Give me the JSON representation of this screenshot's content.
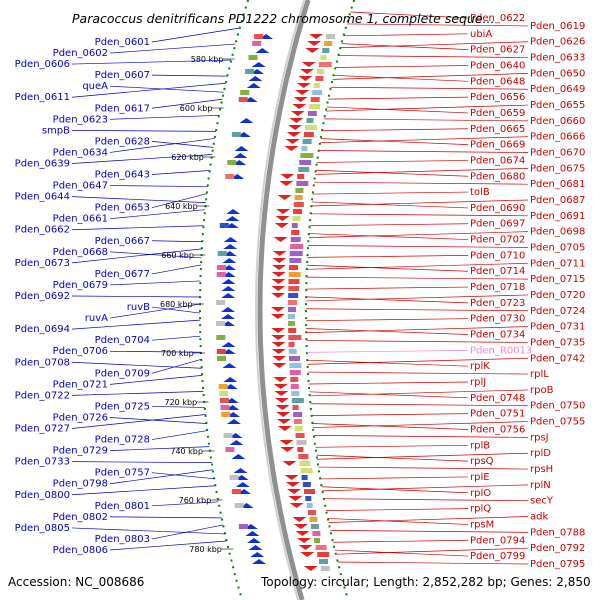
{
  "title": "Paracoccus denitrificans PD1222 chromosome 1, complete seque...",
  "footer": {
    "accession": "Accession: NC_008686",
    "topology": "Topology: circular; Length: 2,852,282 bp; Genes: 2,850"
  },
  "colors": {
    "left_strand": "#0000cc",
    "right_strand": "#cc0000",
    "rna": "#f08cc0",
    "backbone": "#888888",
    "ticks": "#008800"
  },
  "kbp_ticks": [
    "580 kbp",
    "600 kbp",
    "620 kbp",
    "640 kbp",
    "660 kbp",
    "680 kbp",
    "700 kbp",
    "720 kbp",
    "740 kbp",
    "760 kbp",
    "780 kbp"
  ],
  "left_genes": [
    "Pden_0601",
    "Pden_0602",
    "Pden_0606",
    "Pden_0607",
    "queA",
    "Pden_0611",
    "Pden_0617",
    "Pden_0623",
    "smpB",
    "Pden_0628",
    "Pden_0634",
    "Pden_0639",
    "Pden_0643",
    "Pden_0647",
    "Pden_0644",
    "Pden_0653",
    "Pden_0661",
    "Pden_0662",
    "Pden_0667",
    "Pden_0668",
    "Pden_0673",
    "Pden_0677",
    "Pden_0679",
    "Pden_0692",
    "ruvB",
    "ruvA",
    "Pden_0694",
    "Pden_0704",
    "Pden_0706",
    "Pden_0708",
    "Pden_0709",
    "Pden_0721",
    "Pden_0722",
    "Pden_0725",
    "Pden_0726",
    "Pden_0727",
    "Pden_0728",
    "Pden_0729",
    "Pden_0733",
    "Pden_0757",
    "Pden_0798",
    "Pden_0800",
    "Pden_0801",
    "Pden_0802",
    "Pden_0805",
    "Pden_0803",
    "Pden_0806"
  ],
  "right_genes": [
    "Pden_0622",
    "Pden_0619",
    "ubiA",
    "Pden_0626",
    "Pden_0627",
    "Pden_0633",
    "Pden_0640",
    "Pden_0650",
    "Pden_0648",
    "Pden_0649",
    "Pden_0656",
    "Pden_0655",
    "Pden_0659",
    "Pden_0660",
    "Pden_0665",
    "Pden_0666",
    "Pden_0669",
    "Pden_0670",
    "Pden_0674",
    "Pden_0675",
    "Pden_0680",
    "Pden_0681",
    "tolB",
    "Pden_0687",
    "Pden_0690",
    "Pden_0691",
    "Pden_0697",
    "Pden_0698",
    "Pden_0702",
    "Pden_0705",
    "Pden_0710",
    "Pden_0711",
    "Pden_0714",
    "Pden_0715",
    "Pden_0718",
    "Pden_0720",
    "Pden_0723",
    "Pden_0724",
    "Pden_0730",
    "Pden_0731",
    "Pden_0734",
    "Pden_0735",
    "Pden_R0013",
    "Pden_0742",
    "rplK",
    "rplL",
    "rplJ",
    "rpoB",
    "Pden_0748",
    "Pden_0750",
    "Pden_0751",
    "Pden_0755",
    "Pden_0756",
    "rpsJ",
    "rplB",
    "rplD",
    "rpsQ",
    "rpsH",
    "rplE",
    "rplN",
    "rplO",
    "secY",
    "rplQ",
    "adk",
    "rpsM",
    "Pden_0788",
    "Pden_0794",
    "Pden_0792",
    "Pden_0799",
    "Pden_0795"
  ]
}
